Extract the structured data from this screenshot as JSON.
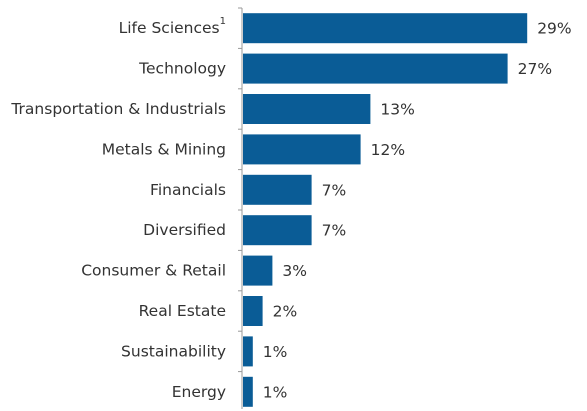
{
  "chart_data": {
    "type": "barh",
    "categories": [
      "Life Sciences",
      "Technology",
      "Transportation & Industrials",
      "Metals & Mining",
      "Financials",
      "Diversified",
      "Consumer & Retail",
      "Real Estate",
      "Sustainability",
      "Energy"
    ],
    "category_notes": [
      "1",
      null,
      null,
      null,
      null,
      null,
      null,
      null,
      null,
      null
    ],
    "values": [
      29,
      27,
      13,
      12,
      7,
      7,
      3,
      2,
      1,
      1
    ],
    "value_labels": [
      "29%",
      "27%",
      "13%",
      "12%",
      "7%",
      "7%",
      "3%",
      "2%",
      "1%",
      "1%"
    ],
    "color": "#0a5c96",
    "xlim": [
      0,
      30
    ]
  }
}
